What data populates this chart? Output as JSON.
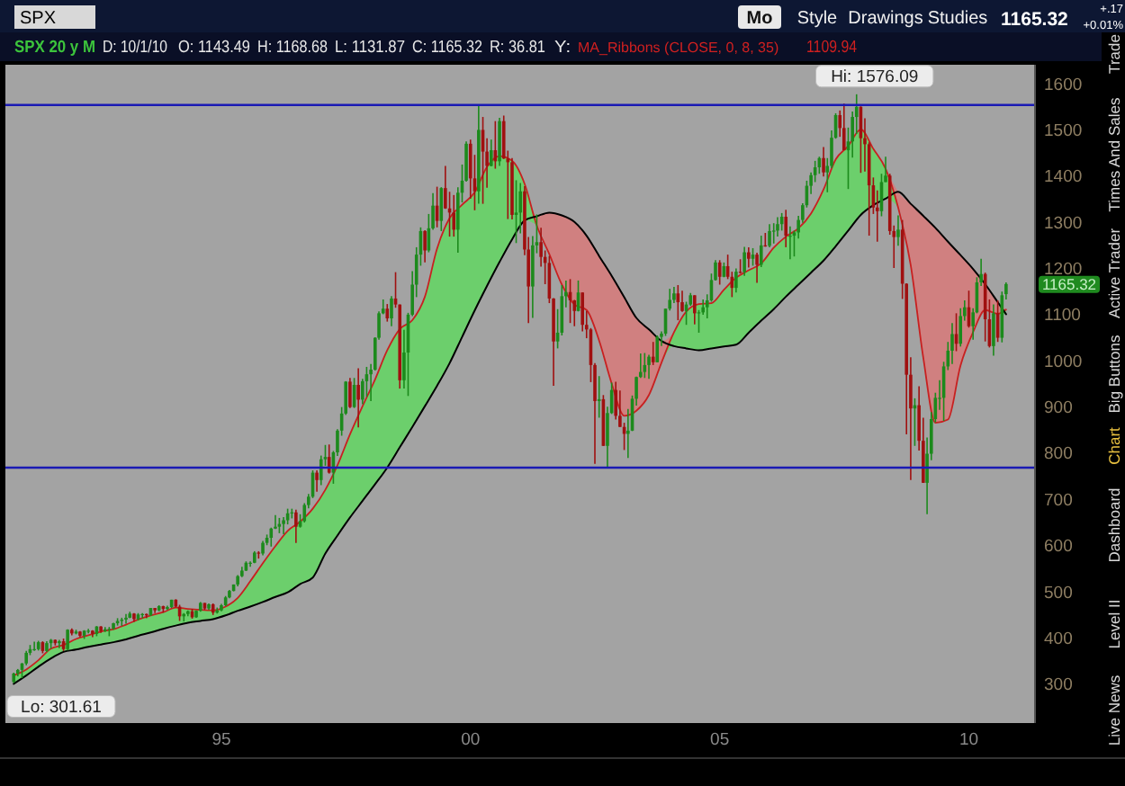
{
  "chart_data": {
    "type": "candlestick",
    "title": "SPX",
    "subtitle": "SPX 20 y M",
    "x": [
      "1990-11",
      "1990-12",
      "1991-01",
      "1991-02",
      "1991-03",
      "1991-04",
      "1991-05",
      "1991-06",
      "1991-07",
      "1991-08",
      "1991-09",
      "1991-10",
      "1991-11",
      "1991-12",
      "1992-01",
      "1992-02",
      "1992-03",
      "1992-04",
      "1992-05",
      "1992-06",
      "1992-07",
      "1992-08",
      "1992-09",
      "1992-10",
      "1992-11",
      "1992-12",
      "1993-01",
      "1993-02",
      "1993-03",
      "1993-04",
      "1993-05",
      "1993-06",
      "1993-07",
      "1993-08",
      "1993-09",
      "1993-10",
      "1993-11",
      "1993-12",
      "1994-01",
      "1994-02",
      "1994-03",
      "1994-04",
      "1994-05",
      "1994-06",
      "1994-07",
      "1994-08",
      "1994-09",
      "1994-10",
      "1994-11",
      "1994-12",
      "1995-01",
      "1995-02",
      "1995-03",
      "1995-04",
      "1995-05",
      "1995-06",
      "1995-07",
      "1995-08",
      "1995-09",
      "1995-10",
      "1995-11",
      "1995-12",
      "1996-01",
      "1996-02",
      "1996-03",
      "1996-04",
      "1996-05",
      "1996-06",
      "1996-07",
      "1996-08",
      "1996-09",
      "1996-10",
      "1996-11",
      "1996-12",
      "1997-01",
      "1997-02",
      "1997-03",
      "1997-04",
      "1997-05",
      "1997-06",
      "1997-07",
      "1997-08",
      "1997-09",
      "1997-10",
      "1997-11",
      "1997-12",
      "1998-01",
      "1998-02",
      "1998-03",
      "1998-04",
      "1998-05",
      "1998-06",
      "1998-07",
      "1998-08",
      "1998-09",
      "1998-10",
      "1998-11",
      "1998-12",
      "1999-01",
      "1999-02",
      "1999-03",
      "1999-04",
      "1999-05",
      "1999-06",
      "1999-07",
      "1999-08",
      "1999-09",
      "1999-10",
      "1999-11",
      "1999-12",
      "2000-01",
      "2000-02",
      "2000-03",
      "2000-04",
      "2000-05",
      "2000-06",
      "2000-07",
      "2000-08",
      "2000-09",
      "2000-10",
      "2000-11",
      "2000-12",
      "2001-01",
      "2001-02",
      "2001-03",
      "2001-04",
      "2001-05",
      "2001-06",
      "2001-07",
      "2001-08",
      "2001-09",
      "2001-10",
      "2001-11",
      "2001-12",
      "2002-01",
      "2002-02",
      "2002-03",
      "2002-04",
      "2002-05",
      "2002-06",
      "2002-07",
      "2002-08",
      "2002-09",
      "2002-10",
      "2002-11",
      "2002-12",
      "2003-01",
      "2003-02",
      "2003-03",
      "2003-04",
      "2003-05",
      "2003-06",
      "2003-07",
      "2003-08",
      "2003-09",
      "2003-10",
      "2003-11",
      "2003-12",
      "2004-01",
      "2004-02",
      "2004-03",
      "2004-04",
      "2004-05",
      "2004-06",
      "2004-07",
      "2004-08",
      "2004-09",
      "2004-10",
      "2004-11",
      "2004-12",
      "2005-01",
      "2005-02",
      "2005-03",
      "2005-04",
      "2005-05",
      "2005-06",
      "2005-07",
      "2005-08",
      "2005-09",
      "2005-10",
      "2005-11",
      "2005-12",
      "2006-01",
      "2006-02",
      "2006-03",
      "2006-04",
      "2006-05",
      "2006-06",
      "2006-07",
      "2006-08",
      "2006-09",
      "2006-10",
      "2006-11",
      "2006-12",
      "2007-01",
      "2007-02",
      "2007-03",
      "2007-04",
      "2007-05",
      "2007-06",
      "2007-07",
      "2007-08",
      "2007-09",
      "2007-10",
      "2007-11",
      "2007-12",
      "2008-01",
      "2008-02",
      "2008-03",
      "2008-04",
      "2008-05",
      "2008-06",
      "2008-07",
      "2008-08",
      "2008-09",
      "2008-10",
      "2008-11",
      "2008-12",
      "2009-01",
      "2009-02",
      "2009-03",
      "2009-04",
      "2009-05",
      "2009-06",
      "2009-07",
      "2009-08",
      "2009-09",
      "2009-10",
      "2009-11",
      "2009-12",
      "2010-01",
      "2010-02",
      "2010-03",
      "2010-04",
      "2010-05",
      "2010-06",
      "2010-07",
      "2010-08",
      "2010-09",
      "2010-10"
    ],
    "ohlc": [
      [
        304,
        324,
        301.61,
        322
      ],
      [
        322,
        332,
        316,
        330
      ],
      [
        330,
        345,
        312,
        344
      ],
      [
        344,
        371,
        340,
        367
      ],
      [
        367,
        384,
        362,
        375
      ],
      [
        375,
        391,
        371,
        375
      ],
      [
        375,
        393,
        372,
        390
      ],
      [
        390,
        392,
        366,
        371
      ],
      [
        371,
        392,
        369,
        388
      ],
      [
        388,
        397,
        376,
        395
      ],
      [
        395,
        396,
        383,
        388
      ],
      [
        388,
        395,
        377,
        392
      ],
      [
        392,
        398,
        371,
        375
      ],
      [
        375,
        418,
        372,
        417
      ],
      [
        417,
        420,
        405,
        409
      ],
      [
        409,
        417,
        407,
        413
      ],
      [
        413,
        414,
        401,
        404
      ],
      [
        404,
        416,
        397,
        415
      ],
      [
        415,
        419,
        409,
        415
      ],
      [
        415,
        416,
        401,
        408
      ],
      [
        408,
        425,
        403,
        424
      ],
      [
        424,
        425,
        410,
        414
      ],
      [
        414,
        423,
        412,
        418
      ],
      [
        418,
        423,
        403,
        419
      ],
      [
        419,
        432,
        417,
        431
      ],
      [
        431,
        442,
        426,
        436
      ],
      [
        436,
        443,
        425,
        439
      ],
      [
        439,
        451,
        430,
        443
      ],
      [
        443,
        456,
        442,
        452
      ],
      [
        452,
        453,
        434,
        440
      ],
      [
        440,
        453,
        437,
        450
      ],
      [
        450,
        453,
        442,
        451
      ],
      [
        451,
        452,
        442,
        448
      ],
      [
        448,
        464,
        447,
        464
      ],
      [
        464,
        464,
        453,
        459
      ],
      [
        459,
        470,
        457,
        468
      ],
      [
        468,
        469,
        454,
        462
      ],
      [
        462,
        469,
        460,
        466
      ],
      [
        466,
        482,
        464,
        482
      ],
      [
        482,
        483,
        465,
        467
      ],
      [
        467,
        471,
        436,
        446
      ],
      [
        446,
        453,
        435,
        451
      ],
      [
        451,
        459,
        446,
        457
      ],
      [
        457,
        462,
        441,
        444
      ],
      [
        444,
        459,
        443,
        458
      ],
      [
        458,
        477,
        456,
        475
      ],
      [
        475,
        475,
        460,
        463
      ],
      [
        463,
        474,
        460,
        472
      ],
      [
        472,
        474,
        449,
        454
      ],
      [
        454,
        465,
        452,
        459
      ],
      [
        459,
        473,
        457,
        470
      ],
      [
        470,
        490,
        468,
        487
      ],
      [
        487,
        503,
        485,
        501
      ],
      [
        501,
        515,
        500,
        515
      ],
      [
        515,
        535,
        511,
        533
      ],
      [
        533,
        553,
        531,
        545
      ],
      [
        545,
        565,
        544,
        562
      ],
      [
        562,
        565,
        553,
        562
      ],
      [
        562,
        587,
        561,
        584
      ],
      [
        584,
        587,
        571,
        582
      ],
      [
        582,
        609,
        578,
        605
      ],
      [
        605,
        623,
        600,
        616
      ],
      [
        616,
        638,
        597,
        636
      ],
      [
        636,
        665,
        635,
        640
      ],
      [
        640,
        659,
        626,
        646
      ],
      [
        646,
        661,
        624,
        654
      ],
      [
        654,
        679,
        645,
        669
      ],
      [
        669,
        679,
        658,
        671
      ],
      [
        671,
        677,
        605,
        640
      ],
      [
        640,
        667,
        638,
        652
      ],
      [
        652,
        691,
        649,
        687
      ],
      [
        687,
        711,
        680,
        705
      ],
      [
        705,
        762,
        702,
        757
      ],
      [
        757,
        762,
        716,
        741
      ],
      [
        741,
        794,
        730,
        786
      ],
      [
        786,
        817,
        772,
        791
      ],
      [
        791,
        818,
        755,
        757
      ],
      [
        757,
        804,
        733,
        801
      ],
      [
        801,
        851,
        793,
        848
      ],
      [
        848,
        899,
        837,
        885
      ],
      [
        885,
        955,
        882,
        954
      ],
      [
        954,
        962,
        897,
        899
      ],
      [
        899,
        962,
        897,
        947
      ],
      [
        947,
        983,
        855,
        915
      ],
      [
        915,
        960,
        905,
        955
      ],
      [
        955,
        986,
        921,
        970
      ],
      [
        970,
        992,
        912,
        980
      ],
      [
        980,
        1050,
        978,
        1049
      ],
      [
        1049,
        1106,
        1045,
        1102
      ],
      [
        1102,
        1132,
        1100,
        1112
      ],
      [
        1112,
        1122,
        1084,
        1091
      ],
      [
        1091,
        1139,
        1074,
        1134
      ],
      [
        1134,
        1191,
        1114,
        1121
      ],
      [
        1121,
        1121,
        939,
        957
      ],
      [
        957,
        1066,
        939,
        1017
      ],
      [
        1017,
        1103,
        923,
        1099
      ],
      [
        1099,
        1193,
        1096,
        1164
      ],
      [
        1164,
        1245,
        1137,
        1229
      ],
      [
        1229,
        1288,
        1205,
        1280
      ],
      [
        1280,
        1282,
        1212,
        1238
      ],
      [
        1238,
        1317,
        1234,
        1286
      ],
      [
        1286,
        1362,
        1283,
        1335
      ],
      [
        1335,
        1376,
        1288,
        1302
      ],
      [
        1302,
        1375,
        1280,
        1373
      ],
      [
        1373,
        1421,
        1328,
        1329
      ],
      [
        1329,
        1365,
        1268,
        1320
      ],
      [
        1320,
        1358,
        1268,
        1283
      ],
      [
        1283,
        1375,
        1233,
        1363
      ],
      [
        1363,
        1424,
        1342,
        1389
      ],
      [
        1389,
        1474,
        1387,
        1469
      ],
      [
        1469,
        1478,
        1350,
        1394
      ],
      [
        1394,
        1445,
        1325,
        1366
      ],
      [
        1366,
        1553,
        1339,
        1499
      ],
      [
        1499,
        1527,
        1339,
        1452
      ],
      [
        1452,
        1481,
        1374,
        1421
      ],
      [
        1421,
        1478,
        1420,
        1455
      ],
      [
        1455,
        1518,
        1415,
        1431
      ],
      [
        1431,
        1525,
        1421,
        1518
      ],
      [
        1518,
        1530,
        1436,
        1437
      ],
      [
        1437,
        1454,
        1306,
        1429
      ],
      [
        1429,
        1438,
        1305,
        1315
      ],
      [
        1315,
        1390,
        1254,
        1320
      ],
      [
        1320,
        1384,
        1275,
        1366
      ],
      [
        1366,
        1377,
        1228,
        1240
      ],
      [
        1240,
        1267,
        1081,
        1160
      ],
      [
        1160,
        1269,
        1092,
        1249
      ],
      [
        1249,
        1316,
        1232,
        1256
      ],
      [
        1256,
        1287,
        1203,
        1224
      ],
      [
        1224,
        1238,
        1165,
        1211
      ],
      [
        1211,
        1226,
        1124,
        1134
      ],
      [
        1134,
        1135,
        945,
        1041
      ],
      [
        1041,
        1111,
        1026,
        1060
      ],
      [
        1060,
        1163,
        1054,
        1139
      ],
      [
        1139,
        1173,
        1115,
        1148
      ],
      [
        1148,
        1176,
        1081,
        1130
      ],
      [
        1130,
        1131,
        1074,
        1107
      ],
      [
        1107,
        1173,
        1106,
        1147
      ],
      [
        1147,
        1147,
        1063,
        1077
      ],
      [
        1077,
        1107,
        1048,
        1067
      ],
      [
        1067,
        1070,
        953,
        990
      ],
      [
        990,
        994,
        776,
        912
      ],
      [
        912,
        966,
        876,
        916
      ],
      [
        916,
        925,
        815,
        815
      ],
      [
        815,
        900,
        768,
        886
      ],
      [
        886,
        952,
        884,
        936
      ],
      [
        936,
        954,
        872,
        880
      ],
      [
        880,
        935,
        856,
        856
      ],
      [
        856,
        865,
        806,
        841
      ],
      [
        841,
        895,
        789,
        848
      ],
      [
        848,
        924,
        847,
        917
      ],
      [
        917,
        965,
        902,
        964
      ],
      [
        964,
        1015,
        962,
        975
      ],
      [
        975,
        1016,
        962,
        990
      ],
      [
        990,
        1012,
        960,
        1008
      ],
      [
        1008,
        1040,
        990,
        996
      ],
      [
        996,
        1054,
        996,
        1051
      ],
      [
        1051,
        1063,
        1031,
        1058
      ],
      [
        1058,
        1112,
        1053,
        1112
      ],
      [
        1112,
        1155,
        1108,
        1131
      ],
      [
        1131,
        1159,
        1124,
        1145
      ],
      [
        1145,
        1163,
        1087,
        1126
      ],
      [
        1126,
        1151,
        1105,
        1107
      ],
      [
        1107,
        1127,
        1077,
        1121
      ],
      [
        1121,
        1146,
        1118,
        1141
      ],
      [
        1141,
        1141,
        1078,
        1102
      ],
      [
        1102,
        1109,
        1060,
        1104
      ],
      [
        1104,
        1132,
        1099,
        1115
      ],
      [
        1115,
        1143,
        1091,
        1130
      ],
      [
        1130,
        1188,
        1127,
        1174
      ],
      [
        1174,
        1217,
        1173,
        1212
      ],
      [
        1212,
        1217,
        1164,
        1181
      ],
      [
        1181,
        1212,
        1180,
        1204
      ],
      [
        1204,
        1229,
        1176,
        1181
      ],
      [
        1181,
        1192,
        1137,
        1157
      ],
      [
        1157,
        1199,
        1147,
        1192
      ],
      [
        1192,
        1219,
        1188,
        1191
      ],
      [
        1191,
        1246,
        1183,
        1234
      ],
      [
        1234,
        1245,
        1201,
        1220
      ],
      [
        1220,
        1243,
        1205,
        1229
      ],
      [
        1229,
        1233,
        1168,
        1207
      ],
      [
        1207,
        1270,
        1202,
        1249
      ],
      [
        1249,
        1276,
        1246,
        1248
      ],
      [
        1248,
        1295,
        1245,
        1280
      ],
      [
        1280,
        1297,
        1253,
        1281
      ],
      [
        1281,
        1310,
        1268,
        1295
      ],
      [
        1295,
        1319,
        1281,
        1311
      ],
      [
        1311,
        1326,
        1245,
        1270
      ],
      [
        1270,
        1290,
        1219,
        1270
      ],
      [
        1270,
        1281,
        1225,
        1277
      ],
      [
        1277,
        1313,
        1264,
        1304
      ],
      [
        1304,
        1340,
        1298,
        1336
      ],
      [
        1336,
        1389,
        1331,
        1378
      ],
      [
        1378,
        1407,
        1360,
        1401
      ],
      [
        1401,
        1432,
        1386,
        1418
      ],
      [
        1418,
        1441,
        1404,
        1438
      ],
      [
        1438,
        1462,
        1398,
        1407
      ],
      [
        1407,
        1438,
        1364,
        1421
      ],
      [
        1421,
        1498,
        1416,
        1482
      ],
      [
        1482,
        1535,
        1480,
        1531
      ],
      [
        1531,
        1541,
        1484,
        1503
      ],
      [
        1503,
        1556,
        1455,
        1455
      ],
      [
        1455,
        1504,
        1371,
        1474
      ],
      [
        1474,
        1539,
        1439,
        1527
      ],
      [
        1527,
        1576.09,
        1490,
        1549
      ],
      [
        1549,
        1550,
        1406,
        1481
      ],
      [
        1481,
        1524,
        1409,
        1468
      ],
      [
        1468,
        1472,
        1270,
        1379
      ],
      [
        1379,
        1396,
        1317,
        1331
      ],
      [
        1331,
        1368,
        1257,
        1323
      ],
      [
        1323,
        1404,
        1312,
        1386
      ],
      [
        1386,
        1441,
        1386,
        1400
      ],
      [
        1400,
        1404,
        1272,
        1280
      ],
      [
        1280,
        1292,
        1200,
        1267
      ],
      [
        1267,
        1314,
        1248,
        1283
      ],
      [
        1283,
        1304,
        1133,
        1166
      ],
      [
        1166,
        1167,
        840,
        969
      ],
      [
        969,
        1007,
        741,
        896
      ],
      [
        896,
        918,
        815,
        903
      ],
      [
        903,
        944,
        805,
        826
      ],
      [
        826,
        876,
        735,
        735
      ],
      [
        735,
        833,
        667,
        798
      ],
      [
        798,
        888,
        784,
        873
      ],
      [
        873,
        930,
        866,
        919
      ],
      [
        919,
        957,
        893,
        919
      ],
      [
        919,
        997,
        869,
        987
      ],
      [
        987,
        1040,
        979,
        1021
      ],
      [
        1021,
        1081,
        992,
        1057
      ],
      [
        1057,
        1102,
        1020,
        1036
      ],
      [
        1036,
        1113,
        1030,
        1096
      ],
      [
        1096,
        1130,
        1086,
        1115
      ],
      [
        1115,
        1151,
        1071,
        1074
      ],
      [
        1074,
        1113,
        1045,
        1104
      ],
      [
        1104,
        1180,
        1102,
        1169
      ],
      [
        1169,
        1220,
        1161,
        1187
      ],
      [
        1187,
        1190,
        1041,
        1089
      ],
      [
        1089,
        1132,
        1028,
        1031
      ],
      [
        1031,
        1121,
        1010,
        1102
      ],
      [
        1102,
        1130,
        1040,
        1049
      ],
      [
        1049,
        1149,
        1039,
        1141
      ],
      [
        1143.49,
        1168.68,
        1131.87,
        1165.32
      ]
    ],
    "series": [
      {
        "type": "line",
        "color": "#c82020",
        "x": [
          "1990-11",
          "1991-02",
          "1991-05",
          "1991-08",
          "1991-11",
          "1992-02",
          "1992-05",
          "1992-08",
          "1992-11",
          "1993-02",
          "1993-05",
          "1993-08",
          "1993-11",
          "1994-02",
          "1994-05",
          "1994-08",
          "1994-11",
          "1995-02",
          "1995-05",
          "1995-08",
          "1995-11",
          "1996-02",
          "1996-05",
          "1996-08",
          "1996-11",
          "1997-02",
          "1997-05",
          "1997-08",
          "1997-11",
          "1998-02",
          "1998-05",
          "1998-08",
          "1998-11",
          "1999-02",
          "1999-05",
          "1999-08",
          "1999-11",
          "2000-02",
          "2000-05",
          "2000-08",
          "2000-11",
          "2001-02",
          "2001-05",
          "2001-08",
          "2001-11",
          "2002-02",
          "2002-05",
          "2002-08",
          "2002-11",
          "2003-02",
          "2003-05",
          "2003-08",
          "2003-11",
          "2004-02",
          "2004-05",
          "2004-08",
          "2004-11",
          "2005-02",
          "2005-05",
          "2005-08",
          "2005-11",
          "2006-02",
          "2006-05",
          "2006-08",
          "2006-11",
          "2007-02",
          "2007-05",
          "2007-08",
          "2007-11",
          "2008-02",
          "2008-05",
          "2008-08",
          "2008-11",
          "2009-02",
          "2009-05",
          "2009-08",
          "2009-11",
          "2010-02",
          "2010-05",
          "2010-08",
          "2010-10"
        ],
        "values": [
          318,
          331,
          351,
          376,
          384,
          397,
          405,
          413,
          418,
          428,
          439,
          448,
          455,
          465,
          462,
          460,
          459,
          467,
          486,
          522,
          561,
          598,
          631,
          651,
          679,
          720,
          773,
          840,
          901,
          959,
          1022,
          1068,
          1087,
          1138,
          1242,
          1308,
          1337,
          1364,
          1419,
          1442,
          1432,
          1382,
          1292,
          1230,
          1164,
          1121,
          1109,
          1043,
          950,
          880,
          891,
          925,
          995,
          1061,
          1106,
          1122,
          1124,
          1153,
          1179,
          1195,
          1210,
          1244,
          1268,
          1286,
          1318,
          1370,
          1435,
          1464,
          1500,
          1458,
          1415,
          1331,
          1206,
          1006,
          865,
          872,
          989,
          1061,
          1109,
          1101,
          1110
        ],
        "lower": [
          300,
          318,
          337,
          355,
          369,
          374,
          380,
          385,
          390,
          396,
          404,
          411,
          419,
          426,
          432,
          436,
          440,
          448,
          458,
          467,
          477,
          488,
          498,
          516,
          530,
          582,
          621,
          660,
          696,
          732,
          768,
          812,
          856,
          901,
          945,
          994,
          1051,
          1108,
          1161,
          1213,
          1262,
          1303,
          1292,
          1230,
          1164,
          1121,
          1109,
          1043,
          950,
          880,
          891,
          925,
          995,
          1031,
          1026,
          1022,
          1026,
          1030,
          1034,
          1060,
          1086,
          1111,
          1138,
          1164,
          1190,
          1216,
          1247,
          1281,
          1315,
          1336,
          1350,
          1331,
          1206,
          1006,
          865,
          872,
          989,
          1061,
          1109,
          1101,
          1100
        ],
        "upper": [
          318,
          331,
          351,
          376,
          384,
          397,
          405,
          413,
          418,
          428,
          439,
          448,
          455,
          465,
          462,
          460,
          459,
          467,
          486,
          522,
          561,
          598,
          631,
          651,
          679,
          720,
          773,
          840,
          901,
          959,
          1022,
          1068,
          1087,
          1138,
          1242,
          1308,
          1337,
          1364,
          1419,
          1442,
          1432,
          1382,
          1312,
          1320,
          1314,
          1300,
          1270,
          1226,
          1183,
          1137,
          1092,
          1067,
          1042,
          1061,
          1106,
          1122,
          1124,
          1153,
          1179,
          1195,
          1210,
          1244,
          1268,
          1286,
          1318,
          1370,
          1435,
          1464,
          1500,
          1458,
          1415,
          1365,
          1339,
          1313,
          1287,
          1257,
          1228,
          1198,
          1165,
          1126,
          1110
        ]
      },
      {
        "type": "line",
        "color": "#000000",
        "x": [
          "1990-11",
          "1991-02",
          "1991-05",
          "1991-08",
          "1991-11",
          "1992-02",
          "1992-05",
          "1992-08",
          "1992-11",
          "1993-02",
          "1993-05",
          "1993-08",
          "1993-11",
          "1994-02",
          "1994-05",
          "1994-08",
          "1994-11",
          "1995-02",
          "1995-05",
          "1995-08",
          "1995-11",
          "1996-02",
          "1996-05",
          "1996-08",
          "1996-11",
          "1997-02",
          "1997-05",
          "1997-08",
          "1997-11",
          "1998-02",
          "1998-05",
          "1998-08",
          "1998-11",
          "1999-02",
          "1999-05",
          "1999-08",
          "1999-11",
          "2000-02",
          "2000-05",
          "2000-08",
          "2000-11",
          "2001-02",
          "2001-05",
          "2001-08",
          "2001-11",
          "2002-02",
          "2002-05",
          "2002-08",
          "2002-11",
          "2003-02",
          "2003-05",
          "2003-08",
          "2003-11",
          "2004-02",
          "2004-05",
          "2004-08",
          "2004-11",
          "2005-02",
          "2005-05",
          "2005-08",
          "2005-11",
          "2006-02",
          "2006-05",
          "2006-08",
          "2006-11",
          "2007-02",
          "2007-05",
          "2007-08",
          "2007-11",
          "2008-02",
          "2008-05",
          "2008-08",
          "2008-11",
          "2009-02",
          "2009-05",
          "2009-08",
          "2009-11",
          "2010-02",
          "2010-05",
          "2010-08",
          "2010-10"
        ],
        "values": [
          300,
          318,
          337,
          355,
          369,
          374,
          380,
          385,
          390,
          396,
          404,
          411,
          419,
          426,
          432,
          436,
          440,
          448,
          458,
          467,
          477,
          488,
          498,
          516,
          530,
          582,
          621,
          660,
          696,
          732,
          768,
          812,
          856,
          901,
          945,
          994,
          1051,
          1108,
          1161,
          1213,
          1262,
          1303,
          1312,
          1320,
          1314,
          1300,
          1270,
          1226,
          1183,
          1137,
          1092,
          1067,
          1042,
          1031,
          1026,
          1022,
          1026,
          1030,
          1034,
          1060,
          1086,
          1111,
          1138,
          1164,
          1190,
          1216,
          1247,
          1281,
          1315,
          1336,
          1350,
          1365,
          1339,
          1313,
          1287,
          1257,
          1228,
          1198,
          1165,
          1126,
          1100
        ]
      }
    ],
    "xlim": [
      "1990-09",
      "2011-05"
    ],
    "xticks": [
      {
        "value": "1995-01",
        "label": "95"
      },
      {
        "value": "2000-01",
        "label": "00"
      },
      {
        "value": "2005-01",
        "label": "05"
      },
      {
        "value": "2010-01",
        "label": "10"
      }
    ],
    "ylim": [
      215,
      1640
    ],
    "yticks": [
      300,
      400,
      500,
      600,
      700,
      800,
      900,
      1000,
      1100,
      1200,
      1300,
      1400,
      1500,
      1600
    ],
    "ref_lines": [
      {
        "axis": "y",
        "value": 1553,
        "color": "#1a1ab4"
      },
      {
        "axis": "y",
        "value": 768,
        "color": "#1a1ab4"
      }
    ],
    "annotations": [
      "D: 10/1/10",
      "O: 1143.49",
      "H: 1168.68",
      "L: 1131.87",
      "C: 1165.32",
      "R: 36.81",
      "Y:",
      "MA_Ribbons (CLOSE, 0, 8, 35)",
      "1109.94",
      "Mo",
      "Style",
      "Drawings",
      "Studies",
      "1165.32",
      "+.17",
      "+0.01%",
      {
        "text": "Hi: 1576.09",
        "x": "2007-10",
        "y": 1576.09
      },
      {
        "text": "Lo: 301.61",
        "x": "1990-11",
        "y": 301.61
      },
      "1165.32",
      "Trade",
      "Times And Sales",
      "Active Trader",
      "Big Buttons",
      "Chart",
      "Dashboard",
      "Level II",
      "Live News"
    ]
  }
}
